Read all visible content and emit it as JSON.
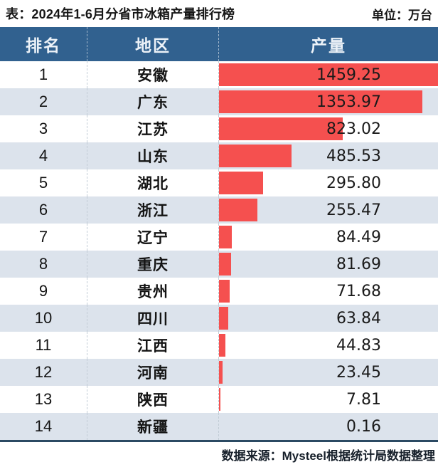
{
  "title": "表：2024年1-6月分省市冰箱产量排行榜",
  "unit": "单位：万台",
  "columns": [
    "排名",
    "地区",
    "产量"
  ],
  "rows": [
    {
      "rank": "1",
      "region": "安徽",
      "value": "1459.25"
    },
    {
      "rank": "2",
      "region": "广东",
      "value": "1353.97"
    },
    {
      "rank": "3",
      "region": "江苏",
      "value": "823.02"
    },
    {
      "rank": "4",
      "region": "山东",
      "value": "485.53"
    },
    {
      "rank": "5",
      "region": "湖北",
      "value": "295.80"
    },
    {
      "rank": "6",
      "region": "浙江",
      "value": "255.47"
    },
    {
      "rank": "7",
      "region": "辽宁",
      "value": "84.49"
    },
    {
      "rank": "8",
      "region": "重庆",
      "value": "81.69"
    },
    {
      "rank": "9",
      "region": "贵州",
      "value": "71.68"
    },
    {
      "rank": "10",
      "region": "四川",
      "value": "63.84"
    },
    {
      "rank": "11",
      "region": "江西",
      "value": "44.83"
    },
    {
      "rank": "12",
      "region": "河南",
      "value": "23.45"
    },
    {
      "rank": "13",
      "region": "陕西",
      "value": "7.81"
    },
    {
      "rank": "14",
      "region": "新疆",
      "value": "0.16"
    }
  ],
  "footer": "数据来源：Mysteel根据统计局数据整理",
  "colors": {
    "header_bg": "#31618f",
    "stripe_bg": "#dce3ec",
    "bar": "#f5504f",
    "bottom_rule": "#2b4a63",
    "header_text": "#ecf2f8",
    "body_text": "#141414"
  },
  "chart_data": {
    "type": "bar",
    "orientation": "horizontal",
    "title": "2024年1-6月分省市冰箱产量排行榜",
    "unit": "万台",
    "categories": [
      "安徽",
      "广东",
      "江苏",
      "山东",
      "湖北",
      "浙江",
      "辽宁",
      "重庆",
      "贵州",
      "四川",
      "江西",
      "河南",
      "陕西",
      "新疆"
    ],
    "values": [
      1459.25,
      1353.97,
      823.02,
      485.53,
      295.8,
      255.47,
      84.49,
      81.69,
      71.68,
      63.84,
      44.83,
      23.45,
      7.81,
      0.16
    ],
    "xlim": [
      0,
      1459.25
    ],
    "grid": false,
    "legend": false,
    "source": "数据来源：Mysteel根据统计局数据整理"
  }
}
